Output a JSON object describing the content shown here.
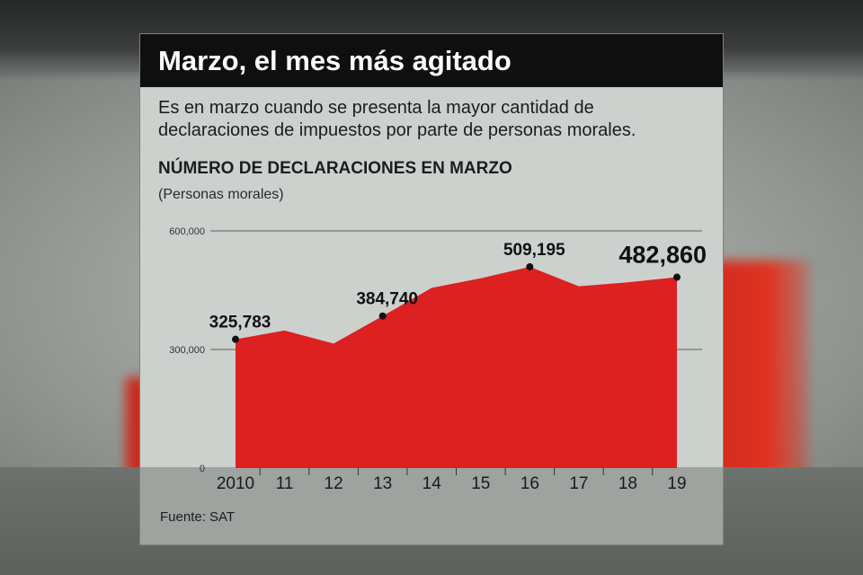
{
  "title": "Marzo, el mes más agitado",
  "description": "Es en marzo cuando se presenta la mayor cantidad de declaraciones de impuestos por parte de personas morales.",
  "source": "Fuente: SAT",
  "colors": {
    "area": "#dd2020",
    "title_bg": "#0f0f0f",
    "panel": "#ccd1ce"
  },
  "chart_data": {
    "type": "area",
    "title": "NÚMERO DE DECLARACIONES EN MARZO",
    "subtitle": "(Personas morales)",
    "categories": [
      "2010",
      "11",
      "12",
      "13",
      "14",
      "15",
      "16",
      "17",
      "18",
      "19"
    ],
    "values": [
      325783,
      348000,
      315000,
      384740,
      456000,
      480000,
      509195,
      460000,
      470000,
      482860
    ],
    "y_ticks": [
      {
        "value": 0,
        "label": "0"
      },
      {
        "value": 300000,
        "label": "300,000"
      },
      {
        "value": 600000,
        "label": "600,000"
      }
    ],
    "ylim": [
      0,
      600000
    ],
    "annotations": [
      {
        "index": 0,
        "label": "325,783",
        "emphasis": false
      },
      {
        "index": 3,
        "label": "384,740",
        "emphasis": false
      },
      {
        "index": 6,
        "label": "509,195",
        "emphasis": false
      },
      {
        "index": 9,
        "label": "482,860",
        "emphasis": true
      }
    ],
    "xlabel": "",
    "ylabel": ""
  }
}
